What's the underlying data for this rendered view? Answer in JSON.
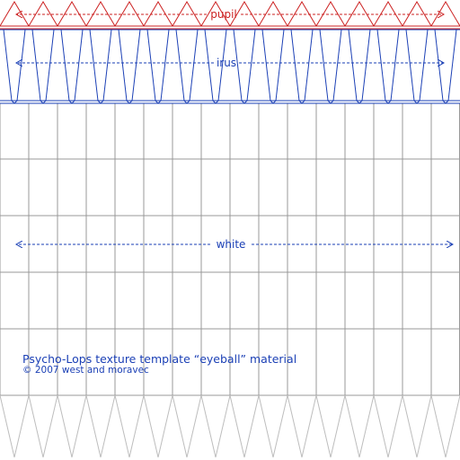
{
  "regions": {
    "pupil": {
      "label": "pupil",
      "color": "#cc2222"
    },
    "irus": {
      "label": "irus",
      "color": "#1a3fb5"
    },
    "white": {
      "label": "white",
      "color": "#1a3fb5"
    }
  },
  "caption": {
    "title": "Psycho-Lops texture template “eyeball” material",
    "copyright": "© 2007 west and moravec"
  },
  "grid": {
    "columns": 16,
    "line_color": "#999999"
  }
}
